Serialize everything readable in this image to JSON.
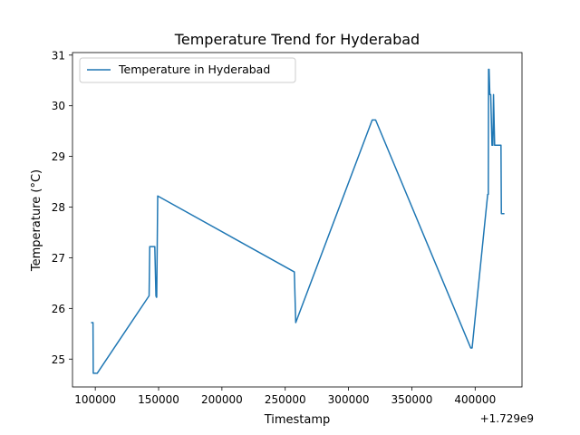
{
  "chart_data": {
    "type": "line",
    "title": "Temperature Trend for Hyderabad",
    "xlabel": "Timestamp",
    "ylabel": "Temperature (°C)",
    "x_offset_label": "+1.729e9",
    "xlim": [
      82000,
      437000
    ],
    "ylim": [
      24.45,
      31.05
    ],
    "x_ticks": [
      100000,
      150000,
      200000,
      250000,
      300000,
      350000,
      400000
    ],
    "x_tick_labels": [
      "100000",
      "150000",
      "200000",
      "250000",
      "300000",
      "350000",
      "400000"
    ],
    "y_ticks": [
      25,
      26,
      27,
      28,
      29,
      30,
      31
    ],
    "y_tick_labels": [
      "25",
      "26",
      "27",
      "28",
      "29",
      "30",
      "31"
    ],
    "grid": false,
    "legend": "upper-left",
    "series": [
      {
        "name": "Temperature in Hyderabad",
        "color": "#1f77b4",
        "x": [
          97200,
          98200,
          98400,
          101500,
          142500,
          143000,
          147000,
          147900,
          148300,
          148500,
          149300,
          257200,
          258300,
          318700,
          321400,
          396500,
          397600,
          409900,
          410400,
          410600,
          411000,
          411600,
          412300,
          413300,
          414000,
          414500,
          415400,
          416300,
          420400,
          420700,
          422600
        ],
        "y": [
          25.72,
          25.72,
          24.72,
          24.72,
          26.25,
          27.22,
          27.22,
          26.25,
          26.22,
          26.22,
          28.22,
          26.72,
          25.72,
          29.72,
          29.72,
          25.22,
          25.22,
          28.25,
          28.25,
          30.72,
          30.72,
          30.22,
          30.22,
          29.22,
          29.22,
          30.22,
          29.22,
          29.22,
          29.22,
          27.87,
          27.87
        ]
      }
    ]
  }
}
